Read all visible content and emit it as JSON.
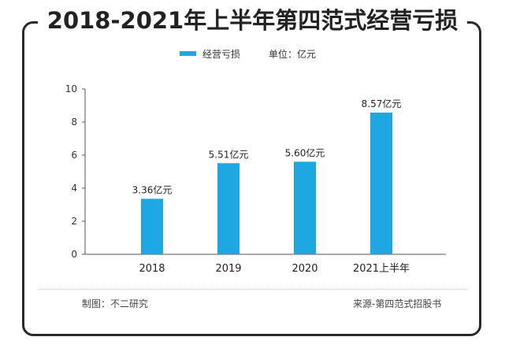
{
  "title": "2018-2021年上半年第四范式经营亏损",
  "legend": {
    "series_name": "经营亏损",
    "unit_label": "单位：亿元"
  },
  "footer": {
    "producer": "制图：不二研究",
    "source": "来源-第四范式招股书"
  },
  "colors": {
    "bar": "#1ea7e1",
    "axis": "#555555",
    "frame": "#2a2a2a"
  },
  "chart_data": {
    "type": "bar",
    "title": "2018-2021年上半年第四范式经营亏损",
    "categories": [
      "2018",
      "2019",
      "2020",
      "2021上半年"
    ],
    "series": [
      {
        "name": "经营亏损",
        "values": [
          3.36,
          5.51,
          5.6,
          8.57
        ]
      }
    ],
    "data_labels": [
      "3.36亿元",
      "5.51亿元",
      "5.60亿元",
      "8.57亿元"
    ],
    "ylim": [
      0,
      10
    ],
    "yticks": [
      0,
      2,
      4,
      6,
      8,
      10
    ],
    "xlabel": "",
    "ylabel": "",
    "grid": false,
    "legend_position": "top"
  }
}
